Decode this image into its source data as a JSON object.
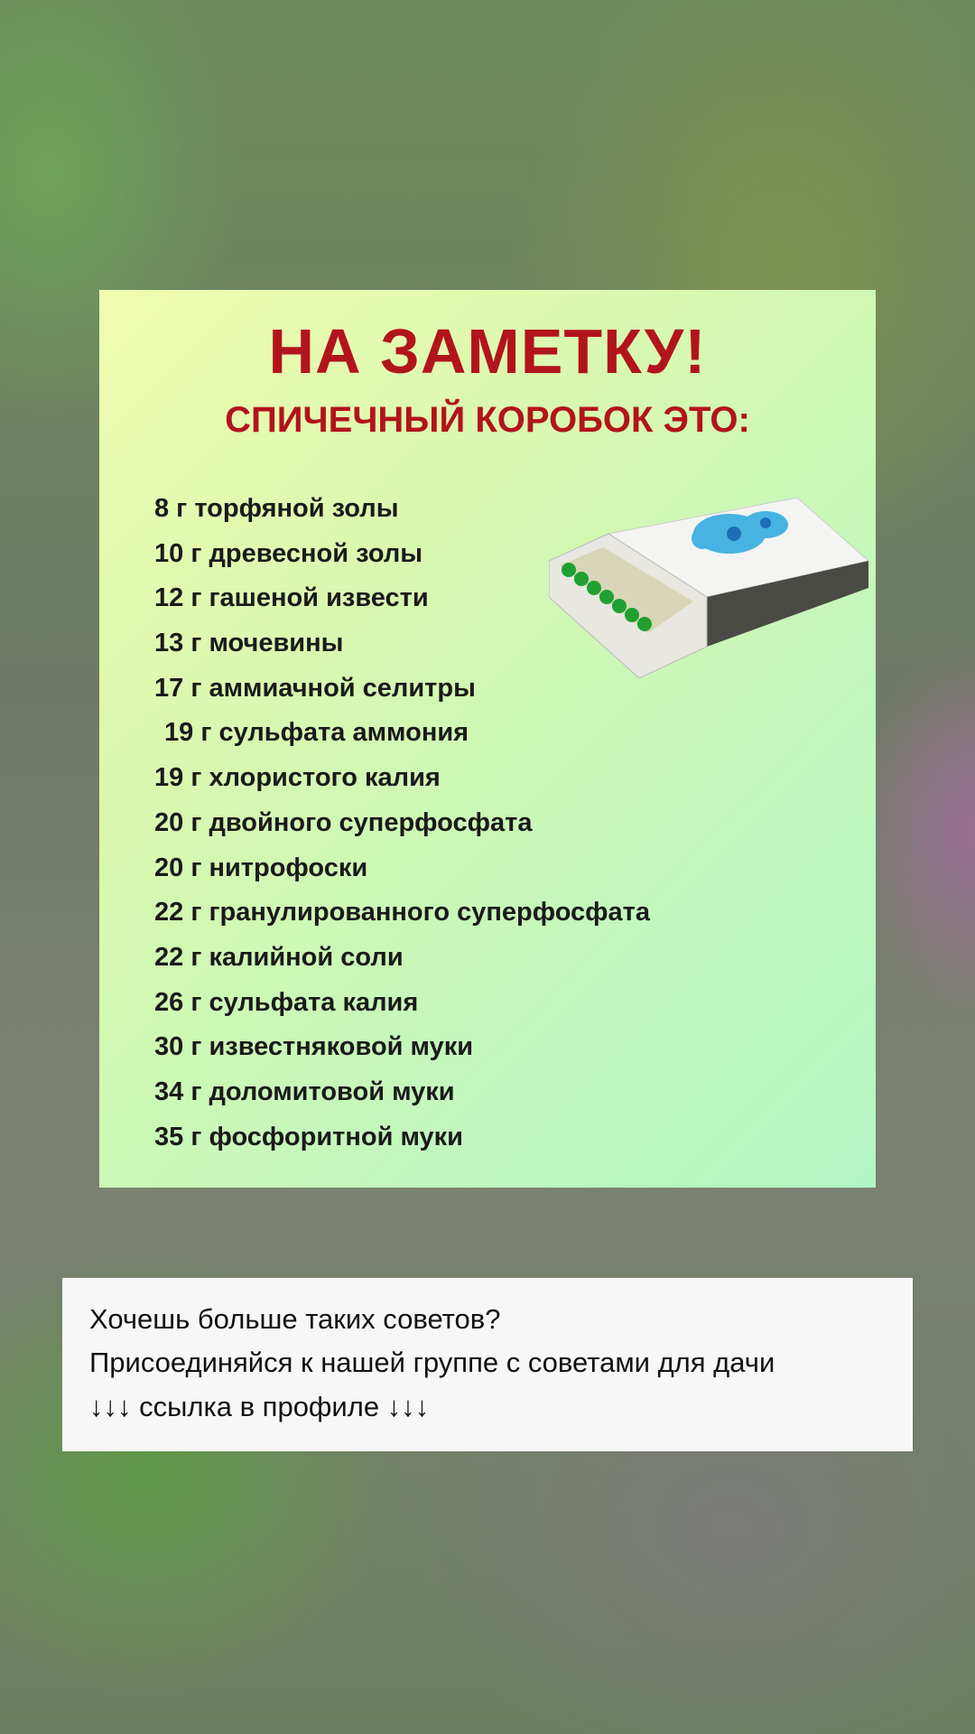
{
  "card": {
    "title": "НА ЗАМЕТКУ!",
    "subtitle": "СПИЧЕЧНЫЙ КОРОБОК ЭТО:",
    "items": [
      "8 г торфяной золы",
      "10 г древесной золы",
      "12 г гашеной извести",
      "13 г мочевины",
      "17 г аммиачной селитры",
      "19 г сульфата аммония",
      "19 г хлористого калия",
      "20 г двойного суперфосфата",
      "20 г нитрофоски",
      "22 г гранулированного суперфосфата",
      "22 г калийной соли",
      "26 г сульфата калия",
      "30 г известняковой муки",
      "34 г доломитовой муки",
      "35 г фосфоритной муки"
    ],
    "colors": {
      "title": "#b2141b",
      "match_heads": "#1fa030",
      "ornament": "#2aa8e0"
    }
  },
  "caption": {
    "line1": "Хочешь больше таких советов?",
    "line2": "Присоединяйся к нашей группе с советами для дачи",
    "line3": "↓↓↓ ссылка в профиле ↓↓↓"
  }
}
